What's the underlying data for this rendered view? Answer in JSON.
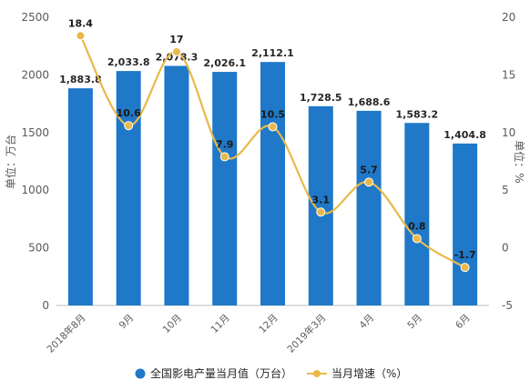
{
  "chart_data": {
    "type": "bar",
    "categories": [
      "2018年8月",
      "9月",
      "10月",
      "11月",
      "12月",
      "2019年3月",
      "4月",
      "5月",
      "6月"
    ],
    "series": [
      {
        "name": "全国影电产量当月值（万台）",
        "type": "bar",
        "axis": "left",
        "values": [
          1883.8,
          2033.8,
          2078.3,
          2026.1,
          2112.1,
          1728.5,
          1688.6,
          1583.2,
          1404.8
        ],
        "labels": [
          "1,883.8",
          "2,033.8",
          "2,078.3",
          "2,026.1",
          "2,112.1",
          "1,728.5",
          "1,688.6",
          "1,583.2",
          "1,404.8"
        ],
        "color": "#1f78c8"
      },
      {
        "name": "当月增速（%）",
        "type": "line",
        "axis": "right",
        "values": [
          18.4,
          10.6,
          17,
          7.9,
          10.5,
          3.1,
          5.7,
          0.8,
          -1.7
        ],
        "labels": [
          "18.4",
          "10.6",
          "17",
          "7.9",
          "10.5",
          "3.1",
          "5.7",
          "0.8",
          "-1.7"
        ],
        "color": "#e8b94a"
      }
    ],
    "ylabel": "单位：万台",
    "ylabel_right": "单位：%",
    "ylim": [
      0,
      2500
    ],
    "ylim_right": [
      -5,
      20
    ],
    "yticks": [
      "0",
      "500",
      "1000",
      "1500",
      "2000",
      "2500"
    ],
    "yticks_right": [
      "-5",
      "0",
      "5",
      "10",
      "15",
      "20"
    ],
    "grid": false,
    "legend_position": "bottom"
  }
}
